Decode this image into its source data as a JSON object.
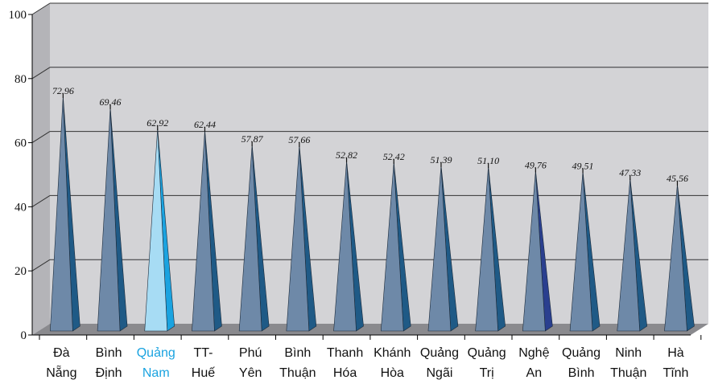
{
  "chart_data": {
    "type": "bar",
    "title": "",
    "xlabel": "",
    "ylabel": "",
    "ylim": [
      0,
      100
    ],
    "yticks": [
      "0",
      "20",
      "40",
      "60",
      "80",
      "100"
    ],
    "grid": true,
    "categories": [
      [
        "Đà",
        "Nẵng"
      ],
      [
        "Bình",
        "Định"
      ],
      [
        "Quảng",
        "Nam"
      ],
      [
        "TT-",
        "Huế"
      ],
      [
        "Phú",
        "Yên"
      ],
      [
        "Bình",
        "Thuận"
      ],
      [
        "Thanh",
        "Hóa"
      ],
      [
        "Khánh",
        "Hòa"
      ],
      [
        "Quảng",
        "Ngãi"
      ],
      [
        "Quảng",
        "Trị"
      ],
      [
        "Nghệ",
        "An"
      ],
      [
        "Quảng",
        "Bình"
      ],
      [
        "Ninh",
        "Thuận"
      ],
      [
        "Hà",
        "Tĩnh"
      ]
    ],
    "values": [
      72.96,
      69.46,
      62.92,
      62.44,
      57.87,
      57.66,
      52.82,
      52.42,
      51.39,
      51.1,
      49.76,
      49.51,
      47.33,
      45.56
    ],
    "value_labels": [
      "72.96",
      "69.46",
      "62.92",
      "62.44",
      "57.87",
      "57.66",
      "52.82",
      "52.42",
      "51.39",
      "51.10",
      "49.76",
      "49.51",
      "47.33",
      "45.56"
    ],
    "highlight_index": 2,
    "colors": {
      "wall": "#d3d3d6",
      "side_wall": "#b4b4b8",
      "floor": "#8a8a8e",
      "gridline": "#333333",
      "bar_front": "#6e89a8",
      "bar_side": "#1f5a86",
      "highlight_front": "#a7dcf4",
      "highlight_side": "#1aa3e0",
      "highlight_text": "#1aa3e0",
      "nghe_an_side": "#2a3f8f"
    }
  }
}
